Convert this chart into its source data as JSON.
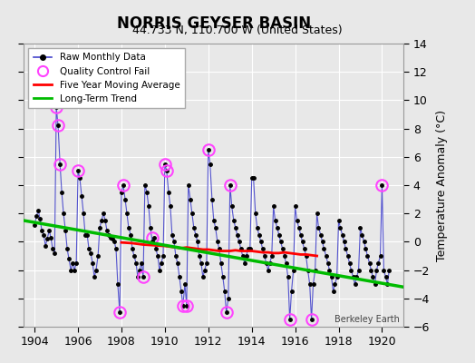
{
  "title": "NORRIS GEYSER BASIN",
  "subtitle": "44.733 N, 110.700 W (United States)",
  "ylabel": "Temperature Anomaly (°C)",
  "credit": "Berkeley Earth",
  "xlim": [
    1903.5,
    1921.0
  ],
  "ylim": [
    -6,
    14
  ],
  "yticks": [
    -6,
    -4,
    -2,
    0,
    2,
    4,
    6,
    8,
    10,
    12,
    14
  ],
  "xticks": [
    1904,
    1906,
    1908,
    1910,
    1912,
    1914,
    1916,
    1918,
    1920
  ],
  "bg_color": "#e8e8e8",
  "plot_bg_color": "#e8e8e8",
  "grid_color": "#ffffff",
  "raw_line_color": "#4444cc",
  "raw_dot_color": "#000000",
  "qc_fail_color": "#ff44ff",
  "moving_avg_color": "#ff0000",
  "trend_color": "#00bb00",
  "trend_x": [
    1903.5,
    1921.0
  ],
  "trend_y": [
    1.5,
    -3.2
  ],
  "moving_avg_x": [
    1908.0,
    1908.5,
    1909.0,
    1909.5,
    1910.0,
    1910.25,
    1910.5,
    1910.75,
    1911.0,
    1911.25,
    1911.5,
    1911.75,
    1912.0,
    1912.25,
    1912.5,
    1912.75,
    1913.0,
    1913.25,
    1913.5,
    1913.75,
    1914.0,
    1914.25,
    1914.5,
    1914.75,
    1915.0,
    1915.25,
    1915.5,
    1915.75,
    1916.0,
    1916.25,
    1916.5,
    1916.75,
    1917.0
  ],
  "moving_avg_y": [
    -0.05,
    -0.1,
    -0.2,
    -0.25,
    -0.3,
    -0.35,
    -0.4,
    -0.45,
    -0.4,
    -0.45,
    -0.5,
    -0.55,
    -0.55,
    -0.6,
    -0.65,
    -0.65,
    -0.65,
    -0.6,
    -0.65,
    -0.65,
    -0.65,
    -0.7,
    -0.75,
    -0.75,
    -0.8,
    -0.8,
    -0.75,
    -0.8,
    -0.85,
    -0.9,
    -0.9,
    -0.95,
    -1.0
  ],
  "raw_data": [
    [
      1904.0,
      1.2
    ],
    [
      1904.08,
      1.8
    ],
    [
      1904.17,
      2.2
    ],
    [
      1904.25,
      1.6
    ],
    [
      1904.33,
      0.8
    ],
    [
      1904.42,
      0.5
    ],
    [
      1904.5,
      -0.3
    ],
    [
      1904.58,
      0.2
    ],
    [
      1904.67,
      0.8
    ],
    [
      1904.75,
      0.3
    ],
    [
      1904.83,
      -0.5
    ],
    [
      1904.92,
      -0.8
    ],
    [
      1905.0,
      9.5
    ],
    [
      1905.08,
      8.2
    ],
    [
      1905.17,
      5.5
    ],
    [
      1905.25,
      3.5
    ],
    [
      1905.33,
      2.0
    ],
    [
      1905.42,
      0.8
    ],
    [
      1905.5,
      -0.5
    ],
    [
      1905.58,
      -1.2
    ],
    [
      1905.67,
      -2.0
    ],
    [
      1905.75,
      -1.5
    ],
    [
      1905.83,
      -2.0
    ],
    [
      1905.92,
      -1.5
    ],
    [
      1906.0,
      5.0
    ],
    [
      1906.08,
      4.5
    ],
    [
      1906.17,
      3.2
    ],
    [
      1906.25,
      2.0
    ],
    [
      1906.33,
      0.5
    ],
    [
      1906.42,
      0.5
    ],
    [
      1906.5,
      -0.5
    ],
    [
      1906.58,
      -0.8
    ],
    [
      1906.67,
      -1.5
    ],
    [
      1906.75,
      -2.5
    ],
    [
      1906.83,
      -2.0
    ],
    [
      1906.92,
      -1.0
    ],
    [
      1907.0,
      1.0
    ],
    [
      1907.08,
      1.5
    ],
    [
      1907.17,
      2.0
    ],
    [
      1907.25,
      1.5
    ],
    [
      1907.33,
      0.8
    ],
    [
      1907.42,
      0.5
    ],
    [
      1907.5,
      0.3
    ],
    [
      1907.58,
      0.2
    ],
    [
      1907.67,
      0.0
    ],
    [
      1907.75,
      -0.5
    ],
    [
      1907.83,
      -3.0
    ],
    [
      1907.92,
      -5.0
    ],
    [
      1908.0,
      3.5
    ],
    [
      1908.08,
      4.0
    ],
    [
      1908.17,
      3.0
    ],
    [
      1908.25,
      2.0
    ],
    [
      1908.33,
      1.0
    ],
    [
      1908.42,
      0.5
    ],
    [
      1908.5,
      -0.5
    ],
    [
      1908.58,
      -1.0
    ],
    [
      1908.67,
      -1.5
    ],
    [
      1908.75,
      -2.5
    ],
    [
      1908.83,
      -2.0
    ],
    [
      1908.92,
      -1.5
    ],
    [
      1909.0,
      -2.5
    ],
    [
      1909.08,
      4.0
    ],
    [
      1909.17,
      3.5
    ],
    [
      1909.25,
      2.5
    ],
    [
      1909.33,
      1.0
    ],
    [
      1909.42,
      0.0
    ],
    [
      1909.5,
      0.3
    ],
    [
      1909.58,
      -0.5
    ],
    [
      1909.67,
      -1.0
    ],
    [
      1909.75,
      -2.0
    ],
    [
      1909.83,
      -1.5
    ],
    [
      1909.92,
      -1.0
    ],
    [
      1910.0,
      5.5
    ],
    [
      1910.08,
      5.0
    ],
    [
      1910.17,
      3.5
    ],
    [
      1910.25,
      2.5
    ],
    [
      1910.33,
      0.5
    ],
    [
      1910.42,
      0.0
    ],
    [
      1910.5,
      -1.0
    ],
    [
      1910.58,
      -1.5
    ],
    [
      1910.67,
      -2.5
    ],
    [
      1910.75,
      -3.5
    ],
    [
      1910.83,
      -4.5
    ],
    [
      1910.92,
      -3.0
    ],
    [
      1911.0,
      -4.5
    ],
    [
      1911.08,
      4.0
    ],
    [
      1911.17,
      3.0
    ],
    [
      1911.25,
      2.0
    ],
    [
      1911.33,
      1.0
    ],
    [
      1911.42,
      0.5
    ],
    [
      1911.5,
      0.0
    ],
    [
      1911.58,
      -1.0
    ],
    [
      1911.67,
      -1.5
    ],
    [
      1911.75,
      -2.5
    ],
    [
      1911.83,
      -2.0
    ],
    [
      1911.92,
      -1.5
    ],
    [
      1912.0,
      6.5
    ],
    [
      1912.08,
      5.5
    ],
    [
      1912.17,
      3.0
    ],
    [
      1912.25,
      1.5
    ],
    [
      1912.33,
      1.0
    ],
    [
      1912.42,
      0.0
    ],
    [
      1912.5,
      -0.5
    ],
    [
      1912.58,
      -1.5
    ],
    [
      1912.67,
      -2.5
    ],
    [
      1912.75,
      -3.5
    ],
    [
      1912.83,
      -5.0
    ],
    [
      1912.92,
      -4.0
    ],
    [
      1913.0,
      4.0
    ],
    [
      1913.08,
      2.5
    ],
    [
      1913.17,
      1.5
    ],
    [
      1913.25,
      1.0
    ],
    [
      1913.33,
      0.5
    ],
    [
      1913.42,
      0.0
    ],
    [
      1913.5,
      -0.5
    ],
    [
      1913.58,
      -1.0
    ],
    [
      1913.67,
      -1.5
    ],
    [
      1913.75,
      -1.0
    ],
    [
      1913.83,
      -0.5
    ],
    [
      1913.92,
      -0.5
    ],
    [
      1914.0,
      4.5
    ],
    [
      1914.08,
      4.5
    ],
    [
      1914.17,
      2.0
    ],
    [
      1914.25,
      1.0
    ],
    [
      1914.33,
      0.5
    ],
    [
      1914.42,
      0.0
    ],
    [
      1914.5,
      -0.5
    ],
    [
      1914.58,
      -1.0
    ],
    [
      1914.67,
      -1.5
    ],
    [
      1914.75,
      -2.0
    ],
    [
      1914.83,
      -1.5
    ],
    [
      1914.92,
      -1.0
    ],
    [
      1915.0,
      2.5
    ],
    [
      1915.08,
      1.5
    ],
    [
      1915.17,
      1.0
    ],
    [
      1915.25,
      0.5
    ],
    [
      1915.33,
      0.0
    ],
    [
      1915.42,
      -0.5
    ],
    [
      1915.5,
      -1.0
    ],
    [
      1915.58,
      -1.5
    ],
    [
      1915.67,
      -2.5
    ],
    [
      1915.75,
      -5.5
    ],
    [
      1915.83,
      -3.5
    ],
    [
      1915.92,
      -2.0
    ],
    [
      1916.0,
      2.5
    ],
    [
      1916.08,
      1.5
    ],
    [
      1916.17,
      1.0
    ],
    [
      1916.25,
      0.5
    ],
    [
      1916.33,
      0.0
    ],
    [
      1916.42,
      -0.5
    ],
    [
      1916.5,
      -1.0
    ],
    [
      1916.58,
      -2.0
    ],
    [
      1916.67,
      -3.0
    ],
    [
      1916.75,
      -5.5
    ],
    [
      1916.83,
      -3.0
    ],
    [
      1916.92,
      -2.0
    ],
    [
      1917.0,
      2.0
    ],
    [
      1917.08,
      1.0
    ],
    [
      1917.17,
      0.5
    ],
    [
      1917.25,
      0.0
    ],
    [
      1917.33,
      -0.5
    ],
    [
      1917.42,
      -1.0
    ],
    [
      1917.5,
      -1.5
    ],
    [
      1917.58,
      -2.0
    ],
    [
      1917.67,
      -2.5
    ],
    [
      1917.75,
      -3.5
    ],
    [
      1917.83,
      -3.0
    ],
    [
      1917.92,
      -2.5
    ],
    [
      1918.0,
      1.5
    ],
    [
      1918.08,
      1.0
    ],
    [
      1918.17,
      0.5
    ],
    [
      1918.25,
      0.0
    ],
    [
      1918.33,
      -0.5
    ],
    [
      1918.42,
      -1.0
    ],
    [
      1918.5,
      -1.5
    ],
    [
      1918.58,
      -2.0
    ],
    [
      1918.67,
      -2.5
    ],
    [
      1918.75,
      -3.0
    ],
    [
      1918.83,
      -2.5
    ],
    [
      1918.92,
      -2.0
    ],
    [
      1919.0,
      1.0
    ],
    [
      1919.08,
      0.5
    ],
    [
      1919.17,
      0.0
    ],
    [
      1919.25,
      -0.5
    ],
    [
      1919.33,
      -1.0
    ],
    [
      1919.42,
      -1.5
    ],
    [
      1919.5,
      -2.0
    ],
    [
      1919.58,
      -2.5
    ],
    [
      1919.67,
      -3.0
    ],
    [
      1919.75,
      -2.0
    ],
    [
      1919.83,
      -1.5
    ],
    [
      1919.92,
      -1.0
    ],
    [
      1920.0,
      4.0
    ],
    [
      1920.08,
      -2.0
    ],
    [
      1920.17,
      -2.5
    ],
    [
      1920.25,
      -3.0
    ],
    [
      1920.33,
      -2.0
    ]
  ],
  "qc_fail_points": [
    [
      1905.0,
      9.5
    ],
    [
      1905.08,
      8.2
    ],
    [
      1905.17,
      5.5
    ],
    [
      1906.0,
      5.0
    ],
    [
      1907.92,
      -5.0
    ],
    [
      1909.0,
      -2.5
    ],
    [
      1910.0,
      5.5
    ],
    [
      1910.08,
      5.0
    ],
    [
      1911.0,
      -4.5
    ],
    [
      1912.0,
      6.5
    ],
    [
      1915.75,
      -5.5
    ],
    [
      1916.75,
      -5.5
    ],
    [
      1920.0,
      4.0
    ],
    [
      1910.83,
      -4.5
    ],
    [
      1912.83,
      -5.0
    ],
    [
      1909.42,
      0.3
    ],
    [
      1908.08,
      4.0
    ],
    [
      1913.0,
      4.0
    ]
  ]
}
